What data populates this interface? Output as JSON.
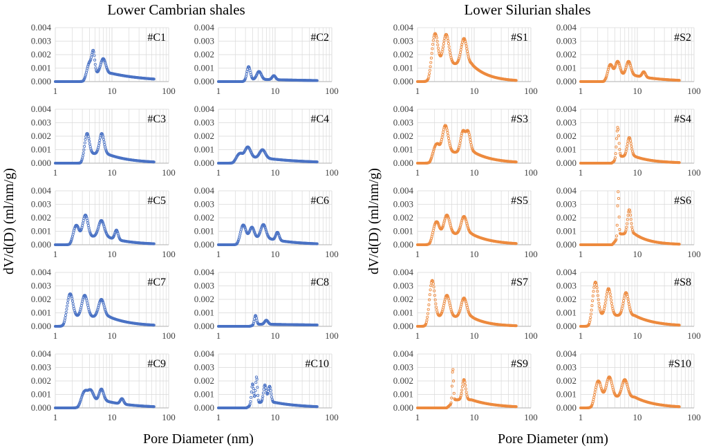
{
  "figure": {
    "left_title": "Lower Cambrian shales",
    "right_title": "Lower Silurian shales",
    "xlabel": "Pore Diameter (nm)",
    "ylabel": "dV/d(D) (ml/nm/g)"
  },
  "colors": {
    "cambrian": "#4a72c4",
    "silurian": "#ed8a3e",
    "grid": "#d9d9d9",
    "axis": "#bfbfbf",
    "tick_text": "#404040"
  },
  "chart_data": {
    "type": "scatter",
    "x_scale": "log",
    "xlim": [
      1,
      100
    ],
    "ylim": [
      0,
      0.004
    ],
    "x_ticks": [
      "1",
      "10",
      "100"
    ],
    "y_ticks": [
      "0.000",
      "0.001",
      "0.002",
      "0.003",
      "0.004"
    ],
    "x_range_of_points": [
      1,
      55
    ],
    "panels": [
      {
        "label": "#C1",
        "group": "cambrian",
        "peaks": [
          [
            4.0,
            0.001,
            0.045
          ],
          [
            4.7,
            0.0014,
            0.025
          ],
          [
            7.0,
            0.0011,
            0.045
          ]
        ],
        "tail": [
          0.0006,
          10,
          0.0002,
          50
        ]
      },
      {
        "label": "#C2",
        "group": "cambrian",
        "peaks": [
          [
            3.4,
            0.001,
            0.03
          ],
          [
            5.2,
            0.0006,
            0.04
          ],
          [
            9.5,
            0.0003,
            0.03
          ]
        ],
        "tail": [
          0.00015,
          8,
          8e-05,
          50
        ]
      },
      {
        "label": "#C3",
        "group": "cambrian",
        "peaks": [
          [
            3.6,
            0.0017,
            0.04
          ],
          [
            6.6,
            0.0015,
            0.04
          ]
        ],
        "tail": [
          0.0007,
          8,
          0.0001,
          50
        ]
      },
      {
        "label": "#C4",
        "group": "cambrian",
        "peaks": [
          [
            2.3,
            0.0004,
            0.05
          ],
          [
            3.3,
            0.0008,
            0.05
          ],
          [
            6.0,
            0.0006,
            0.05
          ]
        ],
        "tail": [
          0.0004,
          6,
          0.0001,
          50
        ]
      },
      {
        "label": "#C5",
        "group": "cambrian",
        "peaks": [
          [
            2.3,
            0.001,
            0.045
          ],
          [
            3.4,
            0.0016,
            0.045
          ],
          [
            6.5,
            0.0012,
            0.05
          ],
          [
            12.0,
            0.0007,
            0.03
          ]
        ],
        "tail": [
          0.0006,
          8,
          8e-05,
          50
        ]
      },
      {
        "label": "#C6",
        "group": "cambrian",
        "peaks": [
          [
            2.7,
            0.0011,
            0.045
          ],
          [
            3.9,
            0.0008,
            0.04
          ],
          [
            6.2,
            0.001,
            0.045
          ],
          [
            11.0,
            0.0006,
            0.03
          ]
        ],
        "tail": [
          0.0005,
          7,
          8e-05,
          50
        ]
      },
      {
        "label": "#C7",
        "group": "cambrian",
        "peaks": [
          [
            1.8,
            0.0019,
            0.05
          ],
          [
            3.3,
            0.0016,
            0.05
          ],
          [
            6.5,
            0.0013,
            0.05
          ]
        ],
        "tail": [
          0.0007,
          9,
          0.0001,
          50
        ]
      },
      {
        "label": "#C8",
        "group": "cambrian",
        "peaks": [
          [
            4.5,
            0.0007,
            0.02
          ],
          [
            7.0,
            0.0003,
            0.03
          ]
        ],
        "tail": [
          0.00015,
          8,
          0.0001,
          50
        ]
      },
      {
        "label": "#C9",
        "group": "cambrian",
        "peaks": [
          [
            3.2,
            0.0008,
            0.05
          ],
          [
            4.2,
            0.0008,
            0.05
          ],
          [
            6.5,
            0.0009,
            0.04
          ],
          [
            15.0,
            0.0004,
            0.03
          ]
        ],
        "tail": [
          0.0005,
          8,
          0.0001,
          50
        ]
      },
      {
        "label": "#C10",
        "group": "cambrian",
        "peaks": [
          [
            4.0,
            0.0015,
            0.02
          ],
          [
            4.7,
            0.0019,
            0.015
          ],
          [
            6.6,
            0.0013,
            0.025
          ],
          [
            8.0,
            0.0012,
            0.025
          ]
        ],
        "tail": [
          0.0004,
          10,
          0.0001,
          50
        ]
      },
      {
        "label": "#S1",
        "group": "silurian",
        "peaks": [
          [
            2.0,
            0.0026,
            0.05
          ],
          [
            3.2,
            0.0022,
            0.05
          ],
          [
            6.6,
            0.0019,
            0.05
          ]
        ],
        "tail": [
          0.0013,
          9,
          0.0001,
          50
        ]
      },
      {
        "label": "#S2",
        "group": "silurian",
        "peaks": [
          [
            3.3,
            0.0009,
            0.04
          ],
          [
            4.5,
            0.001,
            0.04
          ],
          [
            7.0,
            0.001,
            0.04
          ],
          [
            13.0,
            0.0004,
            0.03
          ]
        ],
        "tail": [
          0.0005,
          8,
          0.0001,
          50
        ]
      },
      {
        "label": "#S3",
        "group": "silurian",
        "peaks": [
          [
            2.1,
            0.0008,
            0.05
          ],
          [
            3.1,
            0.002,
            0.05
          ],
          [
            6.3,
            0.0015,
            0.04
          ],
          [
            7.8,
            0.0015,
            0.04
          ]
        ],
        "tail": [
          0.0008,
          10,
          0.0001,
          50
        ]
      },
      {
        "label": "#S4",
        "group": "silurian",
        "peaks": [
          [
            4.5,
            0.0023,
            0.02
          ],
          [
            7.2,
            0.0014,
            0.035
          ]
        ],
        "tail": [
          0.0005,
          9,
          5e-05,
          50
        ]
      },
      {
        "label": "#S5",
        "group": "silurian",
        "peaks": [
          [
            2.1,
            0.0011,
            0.05
          ],
          [
            3.3,
            0.0014,
            0.05
          ],
          [
            6.6,
            0.0013,
            0.05
          ]
        ],
        "tail": [
          0.0008,
          9,
          0.0001,
          50
        ]
      },
      {
        "label": "#S6",
        "group": "silurian",
        "peaks": [
          [
            4.6,
            0.0034,
            0.012
          ],
          [
            7.2,
            0.0018,
            0.03
          ]
        ],
        "tail": [
          0.0008,
          9,
          5e-05,
          50
        ]
      },
      {
        "label": "#S7",
        "group": "silurian",
        "peaks": [
          [
            1.8,
            0.0029,
            0.045
          ],
          [
            3.3,
            0.0016,
            0.05
          ],
          [
            6.6,
            0.0014,
            0.05
          ]
        ],
        "tail": [
          0.0007,
          9,
          5e-05,
          50
        ]
      },
      {
        "label": "#S8",
        "group": "silurian",
        "peaks": [
          [
            1.8,
            0.0027,
            0.045
          ],
          [
            3.1,
            0.002,
            0.045
          ],
          [
            6.3,
            0.0017,
            0.045
          ]
        ],
        "tail": [
          0.0008,
          9,
          0.0001,
          50
        ]
      },
      {
        "label": "#S9",
        "group": "silurian",
        "peaks": [
          [
            4.2,
            0.0025,
            0.012
          ],
          [
            6.6,
            0.0015,
            0.03
          ]
        ],
        "tail": [
          0.0006,
          9,
          0.0001,
          50
        ]
      },
      {
        "label": "#S10",
        "group": "silurian",
        "peaks": [
          [
            2.0,
            0.0014,
            0.05
          ],
          [
            3.2,
            0.0015,
            0.05
          ],
          [
            6.0,
            0.0013,
            0.05
          ]
        ],
        "tail": [
          0.0008,
          9,
          0.0001,
          50
        ]
      }
    ]
  }
}
